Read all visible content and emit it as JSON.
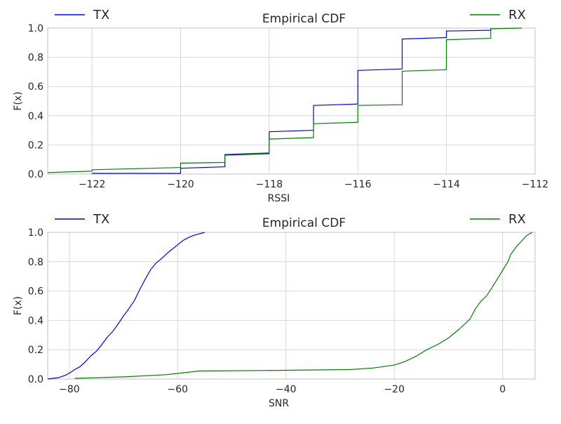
{
  "chart_data": [
    {
      "type": "line",
      "title": "Empirical CDF",
      "xlabel": "RSSI",
      "ylabel": "F(x)",
      "xlim": [
        -123,
        -112
      ],
      "ylim": [
        0,
        1
      ],
      "xticks": [
        -122,
        -120,
        -118,
        -116,
        -114,
        -112
      ],
      "xtick_labels": [
        "−122",
        "−120",
        "−118",
        "−116",
        "−114",
        "−112"
      ],
      "yticks": [
        0,
        0.2,
        0.4,
        0.6,
        0.8,
        1.0
      ],
      "ytick_labels": [
        "0.0",
        "0.2",
        "0.4",
        "0.6",
        "0.8",
        "1.0"
      ],
      "grid": true,
      "legend": {
        "TX": "upper-left",
        "RX": "upper-right"
      },
      "series": [
        {
          "name": "TX",
          "color": "#0000ff",
          "points": [
            [
              -122.0,
              0.005
            ],
            [
              -120.0,
              0.005
            ],
            [
              -120.0,
              0.04
            ],
            [
              -119.0,
              0.05
            ],
            [
              -119.0,
              0.13
            ],
            [
              -118.0,
              0.14
            ],
            [
              -118.0,
              0.29
            ],
            [
              -117.0,
              0.3
            ],
            [
              -117.0,
              0.47
            ],
            [
              -116.0,
              0.48
            ],
            [
              -116.0,
              0.71
            ],
            [
              -115.0,
              0.72
            ],
            [
              -115.0,
              0.925
            ],
            [
              -114.0,
              0.935
            ],
            [
              -114.0,
              0.98
            ],
            [
              -113.0,
              0.985
            ],
            [
              -113.0,
              1.0
            ]
          ]
        },
        {
          "name": "RX",
          "color": "#008000",
          "points": [
            [
              -123.0,
              0.01
            ],
            [
              -122.0,
              0.02
            ],
            [
              -122.0,
              0.03
            ],
            [
              -120.0,
              0.045
            ],
            [
              -120.0,
              0.075
            ],
            [
              -119.0,
              0.08
            ],
            [
              -119.0,
              0.135
            ],
            [
              -118.0,
              0.145
            ],
            [
              -118.0,
              0.24
            ],
            [
              -117.0,
              0.25
            ],
            [
              -117.0,
              0.345
            ],
            [
              -116.0,
              0.355
            ],
            [
              -116.0,
              0.47
            ],
            [
              -115.0,
              0.475
            ],
            [
              -115.0,
              0.705
            ],
            [
              -114.0,
              0.715
            ],
            [
              -114.0,
              0.92
            ],
            [
              -113.0,
              0.93
            ],
            [
              -113.0,
              0.995
            ],
            [
              -112.3,
              1.0
            ]
          ]
        }
      ]
    },
    {
      "type": "line",
      "title": "Empirical CDF",
      "xlabel": "SNR",
      "ylabel": "F(x)",
      "xlim": [
        -84,
        6
      ],
      "ylim": [
        0,
        1
      ],
      "xticks": [
        -80,
        -60,
        -40,
        -20,
        0
      ],
      "xtick_labels": [
        "−80",
        "−60",
        "−40",
        "−20",
        "0"
      ],
      "yticks": [
        0,
        0.2,
        0.4,
        0.6,
        0.8,
        1.0
      ],
      "ytick_labels": [
        "0.0",
        "0.2",
        "0.4",
        "0.6",
        "0.8",
        "1.0"
      ],
      "grid": true,
      "legend": {
        "TX": "upper-left",
        "RX": "upper-right"
      },
      "series": [
        {
          "name": "TX",
          "color": "#0000ff",
          "points": [
            [
              -84,
              0.0
            ],
            [
              -82,
              0.01
            ],
            [
              -80.8,
              0.025
            ],
            [
              -79.8,
              0.045
            ],
            [
              -79,
              0.065
            ],
            [
              -78,
              0.085
            ],
            [
              -77,
              0.12
            ],
            [
              -76,
              0.16
            ],
            [
              -75,
              0.19
            ],
            [
              -74,
              0.235
            ],
            [
              -73,
              0.285
            ],
            [
              -72,
              0.325
            ],
            [
              -71,
              0.375
            ],
            [
              -70,
              0.43
            ],
            [
              -69,
              0.48
            ],
            [
              -68,
              0.535
            ],
            [
              -67,
              0.61
            ],
            [
              -66,
              0.68
            ],
            [
              -65,
              0.745
            ],
            [
              -64,
              0.79
            ],
            [
              -63,
              0.82
            ],
            [
              -62,
              0.855
            ],
            [
              -61,
              0.885
            ],
            [
              -60,
              0.915
            ],
            [
              -59,
              0.945
            ],
            [
              -58,
              0.965
            ],
            [
              -57,
              0.98
            ],
            [
              -56,
              0.99
            ],
            [
              -55,
              1.0
            ]
          ]
        },
        {
          "name": "RX",
          "color": "#008000",
          "points": [
            [
              -79,
              0.005
            ],
            [
              -70,
              0.015
            ],
            [
              -62,
              0.03
            ],
            [
              -56,
              0.055
            ],
            [
              -40,
              0.06
            ],
            [
              -28,
              0.065
            ],
            [
              -24,
              0.075
            ],
            [
              -20,
              0.095
            ],
            [
              -18,
              0.12
            ],
            [
              -16,
              0.155
            ],
            [
              -14,
              0.2
            ],
            [
              -12,
              0.235
            ],
            [
              -10,
              0.28
            ],
            [
              -8,
              0.34
            ],
            [
              -6,
              0.41
            ],
            [
              -5,
              0.48
            ],
            [
              -4,
              0.53
            ],
            [
              -3,
              0.565
            ],
            [
              -2,
              0.62
            ],
            [
              -1,
              0.68
            ],
            [
              0,
              0.74
            ],
            [
              1,
              0.8
            ],
            [
              1.5,
              0.85
            ],
            [
              2.5,
              0.9
            ],
            [
              3.5,
              0.94
            ],
            [
              4.5,
              0.98
            ],
            [
              5.5,
              1.0
            ]
          ]
        }
      ]
    }
  ]
}
